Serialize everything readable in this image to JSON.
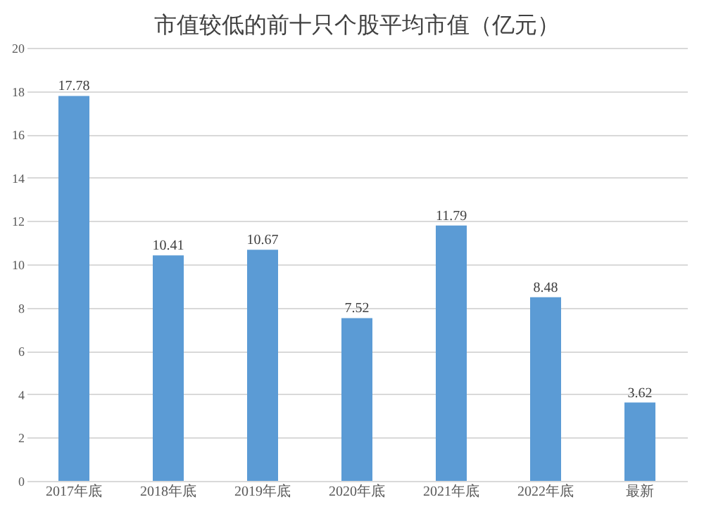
{
  "chart_data": {
    "type": "bar",
    "title": "市值较低的前十只个股平均市值（亿元）",
    "categories": [
      "2017年底",
      "2018年底",
      "2019年底",
      "2020年底",
      "2021年底",
      "2022年底",
      "最新"
    ],
    "values": [
      17.78,
      10.41,
      10.67,
      7.52,
      11.79,
      8.48,
      3.62
    ],
    "color": "#5b9bd5",
    "ylim": [
      0,
      20
    ],
    "yticks": [
      0,
      2,
      4,
      6,
      8,
      10,
      12,
      14,
      16,
      18,
      20
    ],
    "grid": "y",
    "data_labels": true
  }
}
